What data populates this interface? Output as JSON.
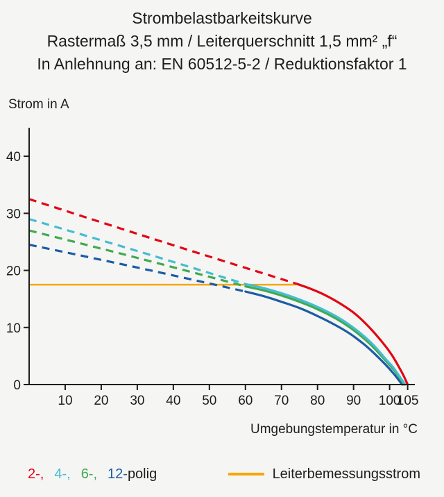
{
  "chart_data": {
    "type": "line",
    "title": "Strombelastbarkeitskurve",
    "subtitle": "Rastermaß 3,5 mm / Leiterquerschnitt 1,5 mm² „f“",
    "subtitle2": "In Anlehnung an: EN 60512-5-2 / Reduktionsfaktor 1",
    "ylabel": "Strom in A",
    "xlabel": "Umgebungstemperatur in °C",
    "xlim": [
      0,
      107
    ],
    "ylim": [
      0,
      45
    ],
    "xticks": [
      10,
      20,
      30,
      40,
      50,
      60,
      70,
      80,
      90,
      100,
      105
    ],
    "yticks": [
      0,
      10,
      20,
      30,
      40
    ],
    "axis_color": "#1d1d1b",
    "grid": false,
    "legend_position": "bottom",
    "rated_line": {
      "label": "Leiterbemessungsstrom",
      "color": "#f7a600",
      "y": 17.5,
      "x_start": 0,
      "x_end": 74
    },
    "series": [
      {
        "name": "12-polig",
        "color": "#1d5ba4",
        "dashed": [
          [
            0,
            24.5
          ],
          [
            30,
            20.5
          ],
          [
            60,
            16.3
          ]
        ],
        "solid": [
          [
            60,
            16.3
          ],
          [
            65,
            15.5
          ],
          [
            70,
            14.5
          ],
          [
            75,
            13.4
          ],
          [
            80,
            12.0
          ],
          [
            85,
            10.4
          ],
          [
            89,
            8.9
          ],
          [
            93,
            7.0
          ],
          [
            96,
            5.3
          ],
          [
            99,
            3.4
          ],
          [
            101,
            2.0
          ],
          [
            102.5,
            0.8
          ],
          [
            103.5,
            0
          ]
        ]
      },
      {
        "name": "6-polig",
        "color": "#3faa4e",
        "dashed": [
          [
            0,
            27.0
          ],
          [
            30,
            22.2
          ],
          [
            60,
            17.2
          ]
        ],
        "solid": [
          [
            60,
            17.2
          ],
          [
            65,
            16.5
          ],
          [
            70,
            15.6
          ],
          [
            75,
            14.5
          ],
          [
            80,
            13.2
          ],
          [
            85,
            11.6
          ],
          [
            89,
            10.0
          ],
          [
            93,
            8.0
          ],
          [
            96,
            6.2
          ],
          [
            99,
            4.1
          ],
          [
            101,
            2.7
          ],
          [
            103,
            1.0
          ],
          [
            104,
            0
          ]
        ]
      },
      {
        "name": "4-polig",
        "color": "#45bcd2",
        "dashed": [
          [
            0,
            29.0
          ],
          [
            30,
            23.4
          ],
          [
            60,
            17.6
          ]
        ],
        "solid": [
          [
            60,
            17.6
          ],
          [
            65,
            16.9
          ],
          [
            70,
            16.0
          ],
          [
            75,
            14.9
          ],
          [
            80,
            13.6
          ],
          [
            85,
            12.0
          ],
          [
            89,
            10.4
          ],
          [
            93,
            8.4
          ],
          [
            96,
            6.6
          ],
          [
            99,
            4.4
          ],
          [
            101,
            3.0
          ],
          [
            103,
            1.2
          ],
          [
            104.3,
            0
          ]
        ]
      },
      {
        "name": "2-polig",
        "color": "#e30613",
        "dashed": [
          [
            0,
            32.5
          ],
          [
            37,
            25.0
          ],
          [
            74,
            17.7
          ]
        ],
        "solid": [
          [
            74,
            17.7
          ],
          [
            78,
            16.8
          ],
          [
            82,
            15.7
          ],
          [
            86,
            14.3
          ],
          [
            90,
            12.6
          ],
          [
            93,
            10.9
          ],
          [
            96,
            8.9
          ],
          [
            99,
            6.6
          ],
          [
            101,
            4.8
          ],
          [
            103,
            2.6
          ],
          [
            104,
            1.4
          ],
          [
            105,
            0
          ]
        ]
      }
    ]
  },
  "legend": {
    "poles": [
      {
        "label": "2-,",
        "color": "#e30613"
      },
      {
        "label": "4-,",
        "color": "#45bcd2"
      },
      {
        "label": "6-,",
        "color": "#3faa4e"
      },
      {
        "label": "12-",
        "color": "#1d5ba4"
      }
    ],
    "poles_suffix": "polig",
    "rated_label": "Leiterbemessungsstrom",
    "rated_color": "#f7a600"
  }
}
